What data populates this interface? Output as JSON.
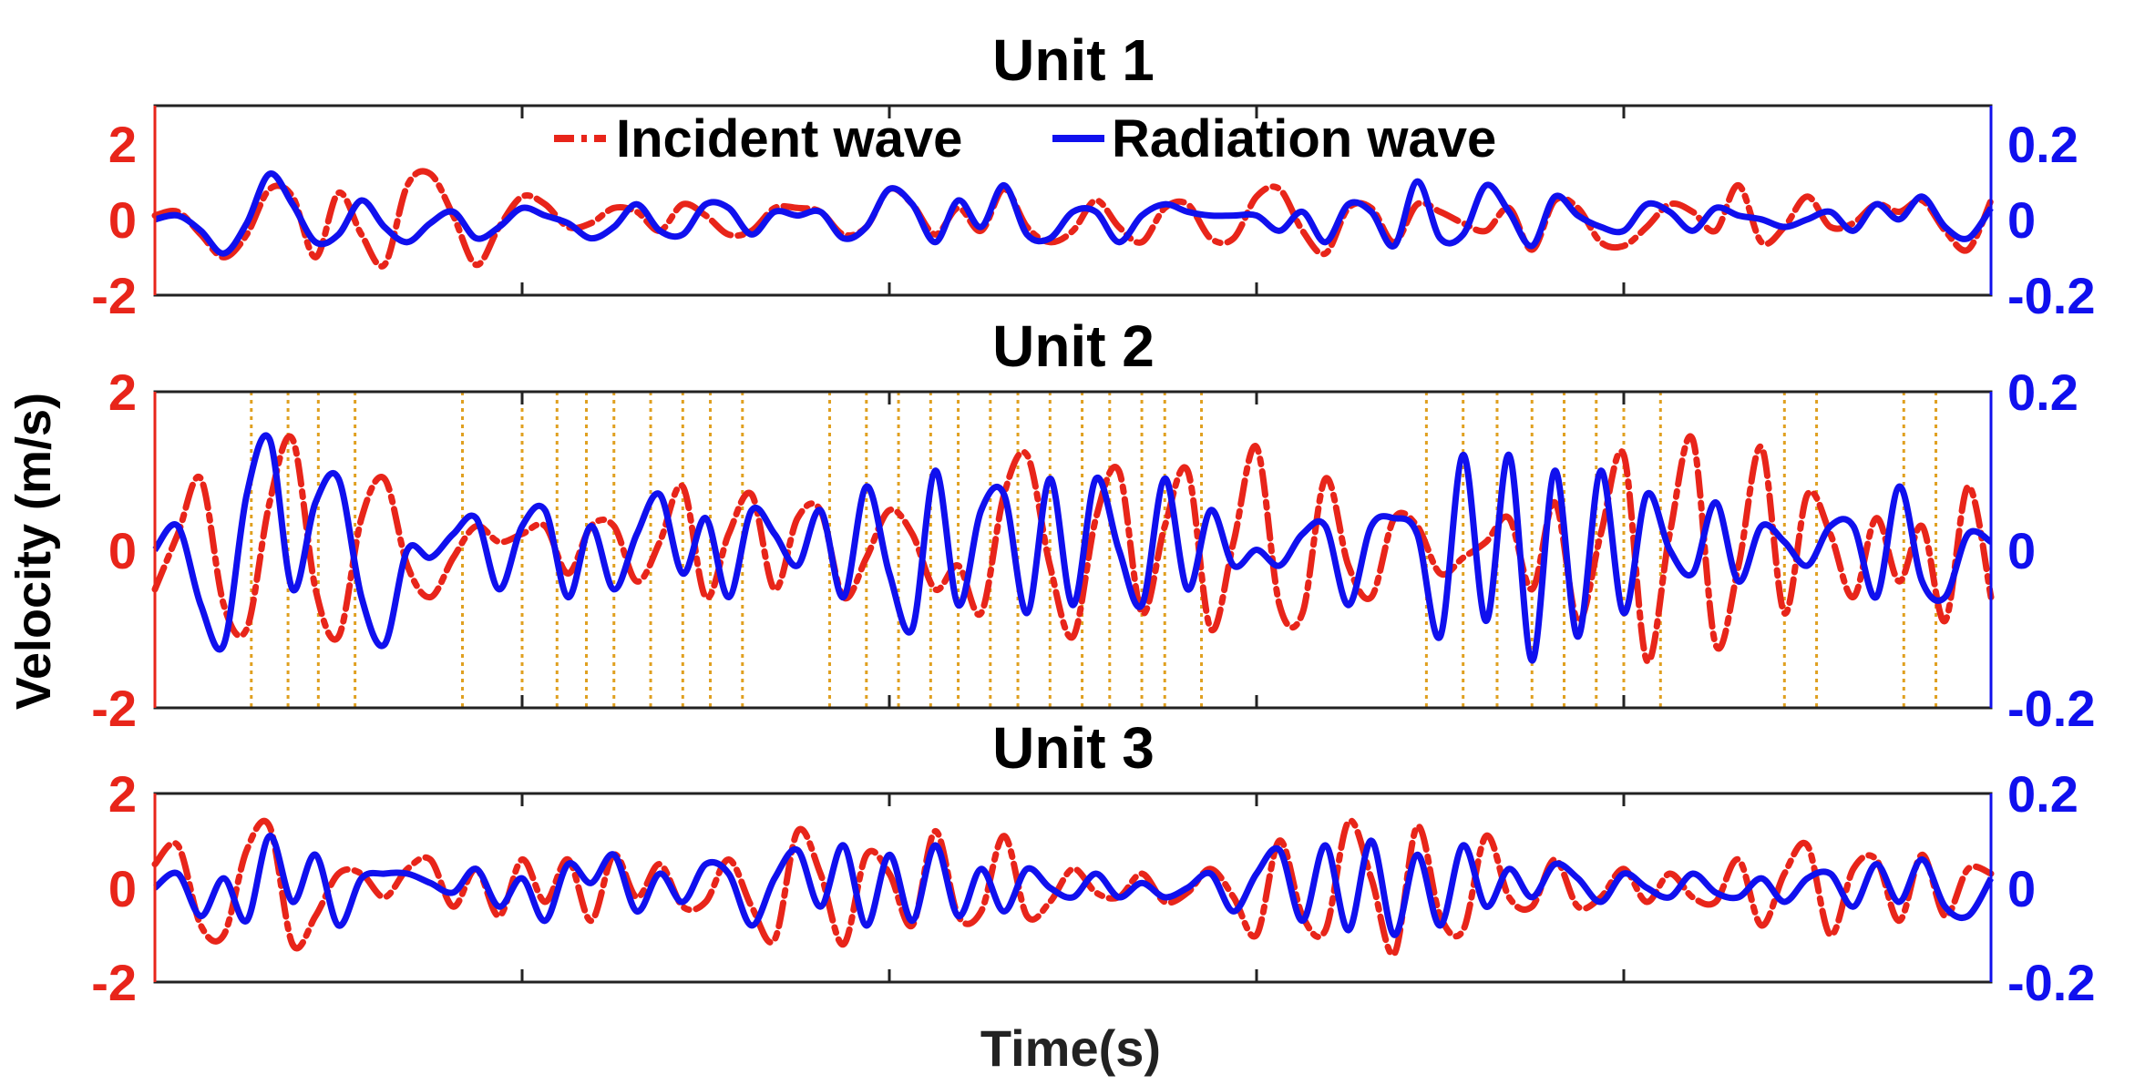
{
  "figure": {
    "ylabel": "Velocity (m/s)",
    "xlabel": "Time(s)",
    "left_axis_color": "#e8251a",
    "right_axis_color": "#1010ee",
    "marker_color": "#e0a020"
  },
  "legend": {
    "placement": "top-center",
    "entries": [
      {
        "label": "Incident wave",
        "color": "#e8251a",
        "style": "dash-dot"
      },
      {
        "label": "Radiation wave",
        "color": "#1010ee",
        "style": "solid"
      }
    ]
  },
  "chart_data": [
    {
      "type": "line",
      "title": "Unit 1",
      "x": [
        0,
        0.25,
        0.5,
        0.75,
        1,
        1.25,
        1.5,
        1.75,
        2,
        2.25,
        2.5,
        2.75,
        3,
        3.25,
        3.5,
        3.75,
        4,
        4.25,
        4.5,
        4.75,
        5,
        5.25,
        5.5,
        5.75,
        6,
        6.25,
        6.5,
        6.75,
        7,
        7.25,
        7.5,
        7.75,
        8,
        8.25,
        8.5,
        8.75,
        9,
        9.25,
        9.5,
        9.75,
        10,
        10.25,
        10.5,
        10.75,
        11,
        11.25,
        11.5,
        11.75,
        12,
        12.25,
        12.5,
        12.75,
        13,
        13.25,
        13.5,
        13.75,
        14,
        14.25,
        14.5,
        14.75,
        15,
        15.25,
        15.5,
        15.75,
        16,
        16.25,
        16.5,
        16.75,
        17,
        17.25,
        17.5,
        17.75,
        18,
        18.25,
        18.5,
        18.75,
        19,
        19.25,
        19.5,
        19.75,
        20
      ],
      "ylim_left": [
        -2,
        3
      ],
      "ylim_right": [
        -0.2,
        0.3
      ],
      "yticks_left": [
        "-2",
        "0",
        "2"
      ],
      "yticks_right": [
        "-0.2",
        "0",
        "0.2"
      ],
      "series": [
        {
          "name": "Incident wave",
          "axis": "left",
          "values": [
            0.1,
            0.2,
            -0.4,
            -1.0,
            -0.4,
            0.8,
            0.6,
            -1.0,
            0.7,
            -0.4,
            -1.2,
            0.9,
            1.2,
            0.1,
            -1.2,
            -0.2,
            0.6,
            0.4,
            -0.2,
            -0.1,
            0.3,
            0.2,
            -0.3,
            0.4,
            0.1,
            -0.4,
            -0.3,
            0.3,
            0.3,
            0.2,
            -0.4,
            -0.2,
            0.8,
            0.4,
            -0.4,
            0.3,
            -0.3,
            0.8,
            -0.2,
            -0.6,
            -0.3,
            0.5,
            -0.2,
            -0.6,
            0.3,
            0.4,
            -0.5,
            -0.5,
            0.6,
            0.8,
            -0.3,
            -0.9,
            0.3,
            0.3,
            -0.6,
            0.4,
            0.2,
            -0.1,
            -0.3,
            0.3,
            -0.8,
            0.5,
            0.3,
            -0.6,
            -0.7,
            -0.2,
            0.4,
            0.2,
            -0.3,
            0.9,
            -0.6,
            -0.2,
            0.6,
            -0.2,
            -0.1,
            0.4,
            0.2,
            0.5,
            -0.3,
            -0.8,
            0.5
          ]
        },
        {
          "name": "Radiation wave",
          "axis": "right",
          "values": [
            0,
            0.01,
            -0.03,
            -0.09,
            -0.01,
            0.12,
            0.04,
            -0.06,
            -0.04,
            0.05,
            -0.02,
            -0.06,
            -0.01,
            0.02,
            -0.05,
            -0.02,
            0.03,
            0.01,
            -0.01,
            -0.05,
            -0.02,
            0.04,
            -0.03,
            -0.04,
            0.04,
            0.03,
            -0.04,
            0.02,
            0.01,
            0.02,
            -0.05,
            -0.02,
            0.08,
            0.04,
            -0.06,
            0.05,
            -0.02,
            0.09,
            -0.04,
            -0.05,
            0.02,
            0.02,
            -0.06,
            0.01,
            0.04,
            0.02,
            0.01,
            0.01,
            0.01,
            -0.03,
            0.02,
            -0.06,
            0.04,
            0.02,
            -0.07,
            0.1,
            -0.05,
            -0.04,
            0.09,
            0.02,
            -0.07,
            0.06,
            0.01,
            -0.02,
            -0.03,
            0.04,
            0.02,
            -0.03,
            0.03,
            0.01,
            0.0,
            -0.02,
            0.0,
            0.02,
            -0.03,
            0.04,
            0.0,
            0.06,
            -0.02,
            -0.05,
            0.03
          ]
        }
      ]
    },
    {
      "type": "line",
      "title": "Unit 2",
      "x": [
        0,
        0.25,
        0.5,
        0.75,
        1,
        1.25,
        1.5,
        1.75,
        2,
        2.25,
        2.5,
        2.75,
        3,
        3.25,
        3.5,
        3.75,
        4,
        4.25,
        4.5,
        4.75,
        5,
        5.25,
        5.5,
        5.75,
        6,
        6.25,
        6.5,
        6.75,
        7,
        7.25,
        7.5,
        7.75,
        8,
        8.25,
        8.5,
        8.75,
        9,
        9.25,
        9.5,
        9.75,
        10,
        10.25,
        10.5,
        10.75,
        11,
        11.25,
        11.5,
        11.75,
        12,
        12.25,
        12.5,
        12.75,
        13,
        13.25,
        13.5,
        13.75,
        14,
        14.25,
        14.5,
        14.75,
        15,
        15.25,
        15.5,
        15.75,
        16,
        16.25,
        16.5,
        16.75,
        17,
        17.25,
        17.5,
        17.75,
        18,
        18.25,
        18.5,
        18.75,
        19,
        19.25,
        19.5,
        19.75,
        20
      ],
      "ylim_left": [
        -2,
        2
      ],
      "ylim_right": [
        -0.2,
        0.2
      ],
      "yticks_left": [
        "-2",
        "0",
        "2"
      ],
      "yticks_right": [
        "-0.2",
        "0",
        "0.2"
      ],
      "series": [
        {
          "name": "Incident wave",
          "axis": "left",
          "values": [
            -0.5,
            0.2,
            0.9,
            -0.7,
            -1.0,
            0.6,
            1.4,
            -0.5,
            -1.1,
            0.4,
            0.9,
            -0.2,
            -0.6,
            -0.1,
            0.3,
            0.1,
            0.2,
            0.3,
            -0.3,
            0.3,
            0.3,
            -0.4,
            0.1,
            0.8,
            -0.6,
            0.2,
            0.7,
            -0.5,
            0.4,
            0.5,
            -0.6,
            -0.1,
            0.5,
            0.2,
            -0.5,
            -0.2,
            -0.8,
            0.7,
            1.2,
            -0.2,
            -1.1,
            0.4,
            1.0,
            -0.8,
            0.3,
            1.0,
            -1.0,
            0.1,
            1.3,
            -0.7,
            -0.8,
            0.9,
            -0.2,
            -0.6,
            0.4,
            0.3,
            -0.3,
            -0.1,
            0.1,
            0.4,
            -0.5,
            0.6,
            -0.9,
            0.2,
            1.2,
            -1.4,
            0.2,
            1.4,
            -1.2,
            -0.2,
            1.3,
            -0.8,
            0.7,
            0.2,
            -0.6,
            0.4,
            -0.4,
            0.3,
            -0.9,
            0.8,
            -0.6
          ]
        },
        {
          "name": "Radiation wave",
          "axis": "right",
          "values": [
            0,
            0.03,
            -0.07,
            -0.12,
            0.07,
            0.14,
            -0.05,
            0.06,
            0.09,
            -0.06,
            -0.12,
            0,
            -0.01,
            0.02,
            0.04,
            -0.05,
            0.03,
            0.05,
            -0.06,
            0.03,
            -0.05,
            0.02,
            0.07,
            -0.03,
            0.04,
            -0.06,
            0.05,
            0.02,
            -0.02,
            0.05,
            -0.06,
            0.08,
            -0.03,
            -0.1,
            0.1,
            -0.07,
            0.05,
            0.07,
            -0.08,
            0.09,
            -0.07,
            0.09,
            0.0,
            -0.07,
            0.09,
            -0.05,
            0.05,
            -0.02,
            0.0,
            -0.02,
            0.02,
            0.03,
            -0.07,
            0.03,
            0.04,
            0.02,
            -0.11,
            0.12,
            -0.09,
            0.12,
            -0.14,
            0.1,
            -0.11,
            0.1,
            -0.08,
            0.07,
            0.0,
            -0.03,
            0.06,
            -0.04,
            0.03,
            0.01,
            -0.02,
            0.03,
            0.03,
            -0.06,
            0.08,
            -0.04,
            -0.06,
            0.02,
            0.01
          ]
        }
      ]
    },
    {
      "type": "line",
      "title": "Unit 3",
      "x": [
        0,
        0.25,
        0.5,
        0.75,
        1,
        1.25,
        1.5,
        1.75,
        2,
        2.25,
        2.5,
        2.75,
        3,
        3.25,
        3.5,
        3.75,
        4,
        4.25,
        4.5,
        4.75,
        5,
        5.25,
        5.5,
        5.75,
        6,
        6.25,
        6.5,
        6.75,
        7,
        7.25,
        7.5,
        7.75,
        8,
        8.25,
        8.5,
        8.75,
        9,
        9.25,
        9.5,
        9.75,
        10,
        10.25,
        10.5,
        10.75,
        11,
        11.25,
        11.5,
        11.75,
        12,
        12.25,
        12.5,
        12.75,
        13,
        13.25,
        13.5,
        13.75,
        14,
        14.25,
        14.5,
        14.75,
        15,
        15.25,
        15.5,
        15.75,
        16,
        16.25,
        16.5,
        16.75,
        17,
        17.25,
        17.5,
        17.75,
        18,
        18.25,
        18.5,
        18.75,
        19,
        19.25,
        19.5,
        19.75,
        20
      ],
      "ylim_left": [
        -2,
        2
      ],
      "ylim_right": [
        -0.2,
        0.2
      ],
      "yticks_left": [
        "-2",
        "0",
        "2"
      ],
      "yticks_right": [
        "-0.2",
        "0",
        "0.2"
      ],
      "series": [
        {
          "name": "Incident wave",
          "axis": "left",
          "values": [
            0.5,
            0.9,
            -0.8,
            -1.0,
            0.8,
            1.3,
            -1.2,
            -0.6,
            0.3,
            0.3,
            -0.2,
            0.4,
            0.6,
            -0.4,
            0.4,
            -0.6,
            0.6,
            -0.3,
            0.6,
            -0.7,
            0.7,
            -0.2,
            0.5,
            -0.4,
            -0.3,
            0.6,
            -0.4,
            -1.1,
            1.2,
            0.3,
            -1.2,
            0.7,
            0.3,
            -0.8,
            1.2,
            -0.6,
            -0.5,
            1.1,
            -0.6,
            -0.3,
            0.4,
            -0.1,
            -0.2,
            0.3,
            -0.3,
            -0.1,
            0.4,
            -0.2,
            -1.0,
            1.0,
            -0.6,
            -0.9,
            1.4,
            0.2,
            -1.4,
            1.3,
            -0.6,
            -0.9,
            1.1,
            -0.2,
            -0.4,
            0.6,
            -0.4,
            -0.2,
            0.4,
            -0.3,
            0.3,
            -0.2,
            -0.3,
            0.6,
            -0.8,
            0.3,
            0.9,
            -1.0,
            0.4,
            0.6,
            -0.7,
            0.7,
            -0.6,
            0.4,
            0.3
          ]
        },
        {
          "name": "Radiation wave",
          "axis": "right",
          "values": [
            0,
            0.03,
            -0.06,
            0.02,
            -0.07,
            0.11,
            -0.03,
            0.07,
            -0.08,
            0.02,
            0.03,
            0.03,
            0.01,
            -0.01,
            0.04,
            -0.04,
            0.02,
            -0.07,
            0.05,
            0.01,
            0.07,
            -0.05,
            0.03,
            -0.03,
            0.05,
            0.03,
            -0.08,
            0.02,
            0.08,
            -0.04,
            0.09,
            -0.08,
            0.07,
            -0.07,
            0.09,
            -0.06,
            0.04,
            -0.05,
            0.04,
            0.0,
            -0.02,
            0.03,
            -0.02,
            0.01,
            -0.02,
            0.0,
            0.03,
            -0.05,
            0.03,
            0.08,
            -0.07,
            0.09,
            -0.09,
            0.1,
            -0.1,
            0.07,
            -0.08,
            0.09,
            -0.04,
            0.04,
            -0.02,
            0.05,
            0.02,
            -0.03,
            0.03,
            0.0,
            -0.02,
            0.03,
            -0.01,
            -0.02,
            0.02,
            -0.03,
            0.02,
            0.03,
            -0.04,
            0.05,
            -0.03,
            0.06,
            -0.04,
            -0.06,
            0.02
          ]
        }
      ],
      "xlabel": "Time(s)"
    }
  ]
}
